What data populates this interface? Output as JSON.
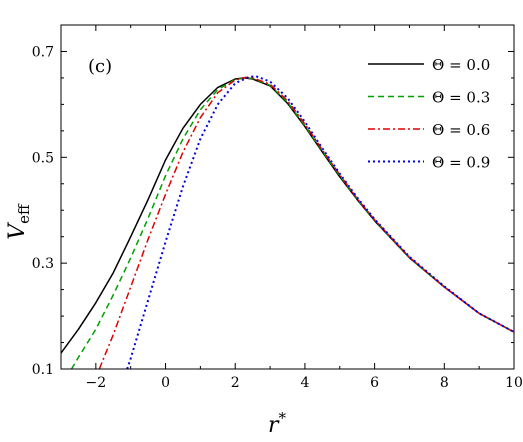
{
  "chart_data": {
    "type": "line",
    "panel_label": "(c)",
    "xlabel": "r",
    "xlabel_sup": "*",
    "ylabel": "V",
    "ylabel_sub": "eff",
    "xlim": [
      -3,
      10
    ],
    "ylim": [
      0.1,
      0.75
    ],
    "xticks": [
      -2,
      0,
      2,
      4,
      6,
      8,
      10
    ],
    "yticks": [
      0.1,
      0.3,
      0.5,
      0.7
    ],
    "xtick_labels": [
      "−2",
      "0",
      "2",
      "4",
      "6",
      "8",
      "10"
    ],
    "ytick_labels": [
      "0.1",
      "0.3",
      "0.5",
      "0.7"
    ],
    "legend_position": "top-right",
    "grid": false,
    "series": [
      {
        "name": "Θ = 0.0",
        "color": "#000000",
        "dash": "solid",
        "x": [
          -3.0,
          -2.5,
          -2.0,
          -1.5,
          -1.0,
          -0.5,
          0.0,
          0.5,
          1.0,
          1.5,
          2.0,
          2.25,
          2.5,
          3.0,
          3.5,
          4.0,
          4.5,
          5.0,
          5.5,
          6.0,
          7.0,
          8.0,
          9.0,
          10.0
        ],
        "y": [
          0.13,
          0.175,
          0.225,
          0.282,
          0.35,
          0.42,
          0.495,
          0.555,
          0.6,
          0.632,
          0.648,
          0.65,
          0.648,
          0.635,
          0.602,
          0.558,
          0.51,
          0.463,
          0.42,
          0.38,
          0.31,
          0.255,
          0.205,
          0.17
        ]
      },
      {
        "name": "Θ = 0.3",
        "color": "#00a000",
        "dash": "dashed",
        "x": [
          -2.7,
          -2.5,
          -2.0,
          -1.5,
          -1.0,
          -0.5,
          0.0,
          0.5,
          1.0,
          1.5,
          2.0,
          2.3,
          2.5,
          3.0,
          3.5,
          4.0,
          4.5,
          5.0,
          5.5,
          6.0,
          7.0,
          8.0,
          9.0,
          10.0
        ],
        "y": [
          0.1,
          0.122,
          0.175,
          0.24,
          0.31,
          0.385,
          0.465,
          0.535,
          0.59,
          0.628,
          0.647,
          0.65,
          0.649,
          0.636,
          0.604,
          0.56,
          0.512,
          0.465,
          0.421,
          0.381,
          0.31,
          0.255,
          0.205,
          0.17
        ]
      },
      {
        "name": "Θ = 0.6",
        "color": "#e00000",
        "dash": "dashdot",
        "x": [
          -1.9,
          -1.5,
          -1.0,
          -0.5,
          0.0,
          0.5,
          1.0,
          1.5,
          2.0,
          2.3,
          2.5,
          3.0,
          3.5,
          4.0,
          4.5,
          5.0,
          5.5,
          6.0,
          7.0,
          8.0,
          9.0,
          10.0
        ],
        "y": [
          0.1,
          0.165,
          0.255,
          0.345,
          0.43,
          0.51,
          0.575,
          0.622,
          0.646,
          0.651,
          0.65,
          0.638,
          0.607,
          0.563,
          0.514,
          0.467,
          0.422,
          0.382,
          0.311,
          0.255,
          0.205,
          0.17
        ]
      },
      {
        "name": "Θ = 0.9",
        "color": "#0000e0",
        "dash": "dotted",
        "x": [
          -1.1,
          -1.0,
          -0.5,
          0.0,
          0.5,
          1.0,
          1.5,
          2.0,
          2.4,
          2.6,
          3.0,
          3.5,
          4.0,
          4.5,
          5.0,
          5.5,
          6.0,
          7.0,
          8.0,
          9.0,
          10.0
        ],
        "y": [
          0.1,
          0.12,
          0.23,
          0.34,
          0.445,
          0.535,
          0.6,
          0.64,
          0.652,
          0.653,
          0.643,
          0.612,
          0.567,
          0.517,
          0.469,
          0.424,
          0.383,
          0.312,
          0.256,
          0.205,
          0.17
        ]
      }
    ]
  }
}
